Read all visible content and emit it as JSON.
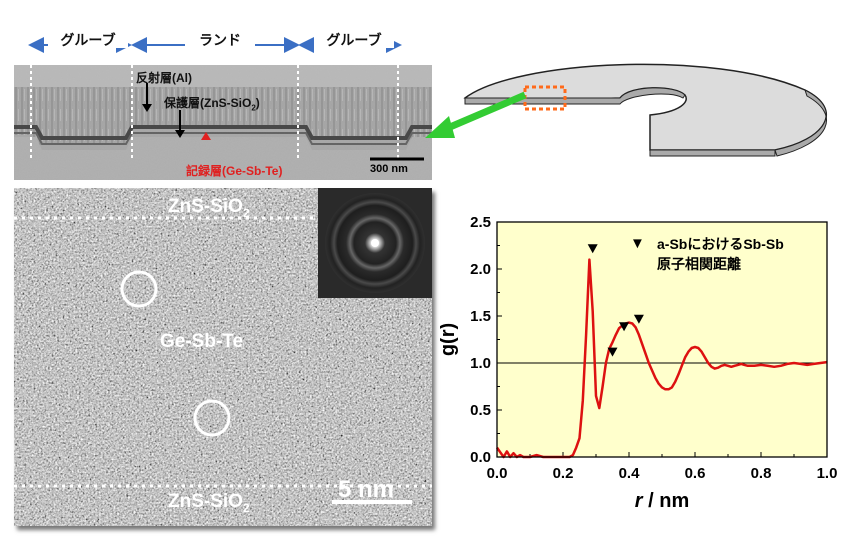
{
  "top_cross_section": {
    "header_labels": {
      "left_groove": "グルーブ",
      "land": "ランド",
      "right_groove": "グルーブ"
    },
    "labels": {
      "reflective_layer": "反射層(Al)",
      "protective_layer": "保護層(ZnS-SiO",
      "protective_sub": "2",
      "protective_close": ")",
      "recording_layer": "記録層(Ge-Sb-Te)",
      "scale": "300 nm"
    },
    "colors": {
      "arrow_blue": "#3b6fc4",
      "record_red": "#e02020"
    }
  },
  "disk_schematic": {
    "colors": {
      "disk_fill": "#dcdcdc",
      "highlight_box": "#ff6a1a",
      "pointer_arrow": "#33cc33"
    }
  },
  "hrtem": {
    "labels": {
      "top_layer": "ZnS-SiO",
      "top_layer_sub": "2",
      "middle": "Ge-Sb-Te",
      "bottom_layer": "ZnS-SiO",
      "bottom_layer_sub": "2",
      "scale": "5 nm"
    }
  },
  "chart_data": {
    "type": "line",
    "xlabel_italic": "r",
    "xlabel_rest": " / nm",
    "ylabel": "g(r)",
    "xlim": [
      0.0,
      1.0
    ],
    "ylim": [
      0.0,
      2.5
    ],
    "xticks": [
      "0.0",
      "0.2",
      "0.4",
      "0.6",
      "0.8",
      "1.0"
    ],
    "yticks": [
      "0.0",
      "0.5",
      "1.0",
      "1.5",
      "2.0",
      "2.5"
    ],
    "reference_line_y": 1.0,
    "series": [
      {
        "color": "#dd1111",
        "x": [
          0.0,
          0.01,
          0.02,
          0.03,
          0.04,
          0.05,
          0.06,
          0.07,
          0.08,
          0.09,
          0.1,
          0.12,
          0.14,
          0.16,
          0.18,
          0.2,
          0.22,
          0.23,
          0.24,
          0.25,
          0.26,
          0.27,
          0.28,
          0.29,
          0.3,
          0.31,
          0.32,
          0.33,
          0.34,
          0.35,
          0.36,
          0.37,
          0.38,
          0.39,
          0.4,
          0.41,
          0.42,
          0.43,
          0.44,
          0.45,
          0.46,
          0.47,
          0.48,
          0.49,
          0.5,
          0.51,
          0.52,
          0.53,
          0.54,
          0.55,
          0.56,
          0.57,
          0.58,
          0.59,
          0.6,
          0.61,
          0.62,
          0.63,
          0.64,
          0.65,
          0.66,
          0.67,
          0.68,
          0.69,
          0.7,
          0.71,
          0.72,
          0.73,
          0.74,
          0.75,
          0.76,
          0.78,
          0.8,
          0.82,
          0.84,
          0.86,
          0.88,
          0.9,
          0.92,
          0.94,
          0.96,
          0.98,
          1.0
        ],
        "values": [
          0.1,
          0.05,
          0.0,
          0.06,
          0.0,
          0.04,
          0.0,
          0.02,
          0.0,
          0.0,
          0.0,
          0.02,
          0.0,
          0.0,
          0.0,
          0.0,
          0.0,
          0.02,
          0.1,
          0.2,
          0.6,
          1.3,
          2.1,
          1.55,
          0.65,
          0.52,
          0.75,
          1.0,
          1.15,
          1.22,
          1.3,
          1.37,
          1.4,
          1.42,
          1.43,
          1.42,
          1.38,
          1.3,
          1.2,
          1.1,
          1.0,
          0.92,
          0.84,
          0.78,
          0.74,
          0.72,
          0.72,
          0.74,
          0.8,
          0.88,
          0.97,
          1.06,
          1.12,
          1.16,
          1.17,
          1.16,
          1.12,
          1.06,
          1.0,
          0.96,
          0.94,
          0.95,
          0.97,
          0.98,
          0.97,
          0.96,
          0.97,
          0.98,
          0.99,
          0.98,
          0.97,
          0.97,
          0.98,
          0.97,
          0.96,
          0.97,
          0.99,
          1.0,
          0.99,
          0.98,
          0.99,
          1.0,
          1.01
        ]
      }
    ],
    "markers": [
      {
        "x": 0.29,
        "y": 2.2
      },
      {
        "x": 0.35,
        "y": 1.1
      },
      {
        "x": 0.385,
        "y": 1.37
      },
      {
        "x": 0.43,
        "y": 1.45
      }
    ],
    "legend": {
      "symbol": "▼",
      "line1": "a-Sbにおける",
      "line1b": "Sb-Sb",
      "line2": "原子相関距離"
    },
    "colors": {
      "plot_bg": "#ffffcc",
      "line": "#dd1111"
    }
  }
}
